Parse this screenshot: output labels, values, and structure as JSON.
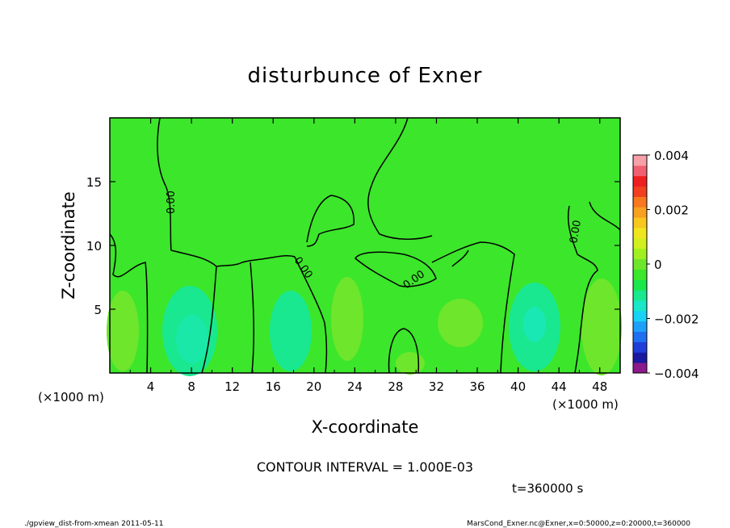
{
  "chart_data": {
    "type": "heatmap",
    "title": "disturbunce of Exner",
    "xlabel": "X-coordinate",
    "ylabel": "Z-coordinate",
    "x_unit": "(×1000 m)",
    "y_unit": "(×1000 m)",
    "xlim": [
      0,
      50
    ],
    "ylim": [
      0,
      20
    ],
    "x_ticks": [
      4,
      8,
      12,
      16,
      20,
      24,
      28,
      32,
      36,
      40,
      44,
      48
    ],
    "y_ticks": [
      5,
      10,
      15
    ],
    "contour_interval_text": "CONTOUR INTERVAL = 1.000E-03",
    "contour_labels": [
      "0.00",
      "0.00",
      "0.00",
      "0.00"
    ],
    "time_text": "t=360000 s",
    "colorbar": {
      "range": [
        -0.004,
        0.004
      ],
      "tick_labels": [
        "0.004",
        "0.002",
        "0",
        "−0.002",
        "−0.004"
      ],
      "tick_values": [
        0.004,
        0.002,
        0,
        -0.002,
        -0.004
      ],
      "colors": [
        "#8b1a8b",
        "#1a1aa0",
        "#1f3fd8",
        "#1f6ff0",
        "#1fa0f8",
        "#19d0f5",
        "#19e8c8",
        "#19e890",
        "#19e84a",
        "#3ce62b",
        "#6ee62b",
        "#a0f01f",
        "#d0f01f",
        "#f0e61f",
        "#f8c81f",
        "#f8a01f",
        "#f8781f",
        "#f0401f",
        "#f01f1f",
        "#f06070",
        "#f8a0a8"
      ]
    },
    "fill_colors": {
      "background": "#3ce62b",
      "light": "#6ee62b",
      "weak_negative": "#19e890",
      "moderate_negative": "#19e8b4"
    }
  },
  "footer": {
    "left": "./gpview_dist-from-xmean  2011-05-11",
    "right": "MarsCond_Exner.nc@Exner,x=0:50000,z=0:20000,t=360000"
  }
}
